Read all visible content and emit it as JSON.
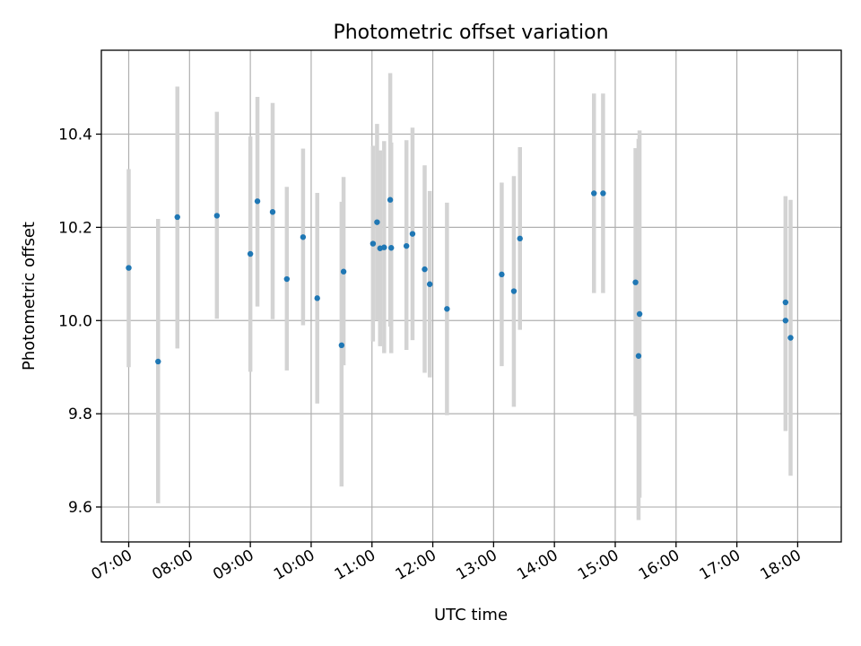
{
  "chart_data": {
    "type": "scatter",
    "title": "Photometric offset variation",
    "xlabel": "UTC time",
    "ylabel": "Photometric offset",
    "x_unit": "hours UTC",
    "xlim": [
      "06:33",
      "18:43"
    ],
    "ylim": [
      9.525,
      10.58
    ],
    "x_ticks": [
      "07:00",
      "08:00",
      "09:00",
      "10:00",
      "11:00",
      "12:00",
      "13:00",
      "14:00",
      "15:00",
      "16:00",
      "17:00",
      "18:00"
    ],
    "y_ticks": [
      "9.6",
      "9.8",
      "10.0",
      "10.2",
      "10.4"
    ],
    "grid": true,
    "colors": {
      "point": "#1f77b4",
      "errorbar": "#d3d3d3"
    },
    "points": [
      {
        "t": "07:00",
        "y": 10.113,
        "lo": 9.9,
        "hi": 10.325
      },
      {
        "t": "07:29",
        "y": 9.912,
        "lo": 9.608,
        "hi": 10.218
      },
      {
        "t": "07:48",
        "y": 10.222,
        "lo": 9.94,
        "hi": 10.502
      },
      {
        "t": "08:27",
        "y": 10.225,
        "lo": 10.004,
        "hi": 10.448
      },
      {
        "t": "09:00",
        "y": 10.143,
        "lo": 9.89,
        "hi": 10.395
      },
      {
        "t": "09:07",
        "y": 10.256,
        "lo": 10.03,
        "hi": 10.48
      },
      {
        "t": "09:22",
        "y": 10.233,
        "lo": 10.003,
        "hi": 10.467
      },
      {
        "t": "09:36",
        "y": 10.089,
        "lo": 9.893,
        "hi": 10.287
      },
      {
        "t": "09:52",
        "y": 10.179,
        "lo": 9.99,
        "hi": 10.369
      },
      {
        "t": "10:06",
        "y": 10.048,
        "lo": 9.822,
        "hi": 10.274
      },
      {
        "t": "10:30",
        "y": 9.947,
        "lo": 9.644,
        "hi": 10.255
      },
      {
        "t": "10:32",
        "y": 10.105,
        "lo": 9.904,
        "hi": 10.308
      },
      {
        "t": "11:01",
        "y": 10.165,
        "lo": 9.955,
        "hi": 10.375
      },
      {
        "t": "11:05",
        "y": 10.211,
        "lo": 10.0,
        "hi": 10.422
      },
      {
        "t": "11:08",
        "y": 10.155,
        "lo": 9.945,
        "hi": 10.365
      },
      {
        "t": "11:12",
        "y": 10.157,
        "lo": 9.93,
        "hi": 10.385
      },
      {
        "t": "11:18",
        "y": 10.259,
        "lo": 9.987,
        "hi": 10.531
      },
      {
        "t": "11:19",
        "y": 10.156,
        "lo": 9.93,
        "hi": 10.382
      },
      {
        "t": "11:34",
        "y": 10.16,
        "lo": 9.937,
        "hi": 10.387
      },
      {
        "t": "11:40",
        "y": 10.186,
        "lo": 9.958,
        "hi": 10.414
      },
      {
        "t": "11:52",
        "y": 10.11,
        "lo": 9.888,
        "hi": 10.333
      },
      {
        "t": "11:57",
        "y": 10.078,
        "lo": 9.878,
        "hi": 10.278
      },
      {
        "t": "12:14",
        "y": 10.025,
        "lo": 9.797,
        "hi": 10.253
      },
      {
        "t": "13:08",
        "y": 10.099,
        "lo": 9.902,
        "hi": 10.296
      },
      {
        "t": "13:20",
        "y": 10.063,
        "lo": 9.815,
        "hi": 10.31
      },
      {
        "t": "13:26",
        "y": 10.176,
        "lo": 9.98,
        "hi": 10.372
      },
      {
        "t": "14:39",
        "y": 10.273,
        "lo": 10.059,
        "hi": 10.487
      },
      {
        "t": "14:48",
        "y": 10.273,
        "lo": 10.059,
        "hi": 10.487
      },
      {
        "t": "15:20",
        "y": 10.082,
        "lo": 9.795,
        "hi": 10.37
      },
      {
        "t": "15:23",
        "y": 9.924,
        "lo": 9.572,
        "hi": 10.39
      },
      {
        "t": "15:24",
        "y": 10.014,
        "lo": 9.62,
        "hi": 10.408
      },
      {
        "t": "17:48",
        "y": 10.039,
        "lo": 9.763,
        "hi": 10.267
      },
      {
        "t": "17:48",
        "y": 10.0,
        "lo": 9.8,
        "hi": 10.2
      },
      {
        "t": "17:53",
        "y": 9.963,
        "lo": 9.667,
        "hi": 10.259
      }
    ]
  }
}
